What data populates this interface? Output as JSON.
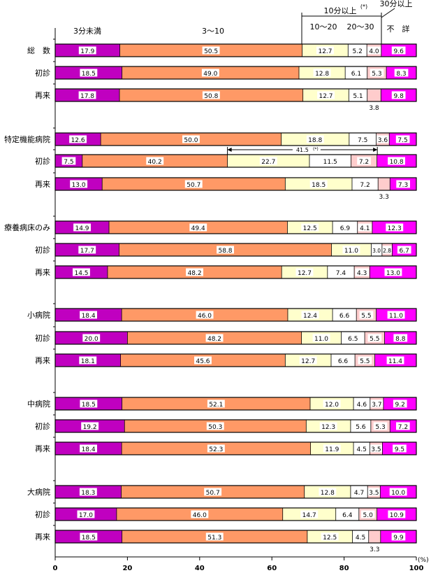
{
  "chart_data": {
    "type": "bar",
    "orientation": "horizontal",
    "stacked": true,
    "x_unit": "(%)",
    "xlim": [
      0,
      100
    ],
    "x_ticks": [
      "0",
      "20",
      "40",
      "60",
      "80",
      "100"
    ],
    "legend_labels": [
      "3分未満",
      "3～10",
      "10～20",
      "20～30",
      "30分以上",
      "不　詳"
    ],
    "group_header": "10分以上",
    "group_header_mark": "(*)",
    "series_colors": [
      "#c000c0",
      "#ff9966",
      "#ffffcc",
      "#ffffff",
      "#ffcccc",
      "#ff00ff"
    ],
    "bar_border_color": "#000000",
    "rows": [
      {
        "category": "総　数",
        "values": [
          17.9,
          50.5,
          12.7,
          5.2,
          4.0,
          9.6
        ],
        "labels": [
          "17.9",
          "50.5",
          "12.7",
          "5.2",
          "4.0",
          "9.6"
        ]
      },
      {
        "category": "初診",
        "values": [
          18.5,
          49.0,
          12.8,
          6.1,
          5.3,
          8.3
        ],
        "labels": [
          "18.5",
          "49.0",
          "12.8",
          "6.1",
          "5.3",
          "8.3"
        ]
      },
      {
        "category": "再来",
        "values": [
          17.8,
          50.8,
          12.7,
          5.1,
          3.8,
          9.8
        ],
        "labels": [
          "17.8",
          "50.8",
          "12.7",
          "5.1",
          "3.8",
          "9.8"
        ]
      },
      {
        "category": "特定機能病院",
        "values": [
          12.6,
          50.0,
          18.8,
          7.5,
          3.6,
          7.5
        ],
        "labels": [
          "12.6",
          "50.0",
          "18.8",
          "7.5",
          "3.6",
          "7.5"
        ]
      },
      {
        "category": "初診",
        "values": [
          7.5,
          40.2,
          22.7,
          11.5,
          7.2,
          10.8
        ],
        "labels": [
          "7.5",
          "40.2",
          "22.7",
          "11.5",
          "7.2",
          "10.8"
        ]
      },
      {
        "category": "再来",
        "values": [
          13.0,
          50.7,
          18.5,
          7.2,
          3.3,
          7.3
        ],
        "labels": [
          "13.0",
          "50.7",
          "18.5",
          "7.2",
          "3.3",
          "7.3"
        ]
      },
      {
        "category": "療養病床のみ",
        "values": [
          14.9,
          49.4,
          12.5,
          6.9,
          4.1,
          12.3
        ],
        "labels": [
          "14.9",
          "49.4",
          "12.5",
          "6.9",
          "4.1",
          "12.3"
        ]
      },
      {
        "category": "初診",
        "values": [
          17.7,
          58.8,
          11.0,
          3.0,
          2.8,
          6.7
        ],
        "labels": [
          "17.7",
          "58.8",
          "11.0",
          "3.0",
          "2.8",
          "6.7"
        ]
      },
      {
        "category": "再来",
        "values": [
          14.5,
          48.2,
          12.7,
          7.4,
          4.3,
          13.0
        ],
        "labels": [
          "14.5",
          "48.2",
          "12.7",
          "7.4",
          "4.3",
          "13.0"
        ]
      },
      {
        "category": "小病院",
        "values": [
          18.4,
          46.0,
          12.4,
          6.6,
          5.5,
          11.0
        ],
        "labels": [
          "18.4",
          "46.0",
          "12.4",
          "6.6",
          "5.5",
          "11.0"
        ]
      },
      {
        "category": "初診",
        "values": [
          20.0,
          48.2,
          11.0,
          6.5,
          5.5,
          8.8
        ],
        "labels": [
          "20.0",
          "48.2",
          "11.0",
          "6.5",
          "5.5",
          "8.8"
        ]
      },
      {
        "category": "再来",
        "values": [
          18.1,
          45.6,
          12.7,
          6.6,
          5.5,
          11.4
        ],
        "labels": [
          "18.1",
          "45.6",
          "12.7",
          "6.6",
          "5.5",
          "11.4"
        ]
      },
      {
        "category": "中病院",
        "values": [
          18.5,
          52.1,
          12.0,
          4.6,
          3.7,
          9.2
        ],
        "labels": [
          "18.5",
          "52.1",
          "12.0",
          "4.6",
          "3.7",
          "9.2"
        ]
      },
      {
        "category": "初診",
        "values": [
          19.2,
          50.3,
          12.3,
          5.6,
          5.3,
          7.2
        ],
        "labels": [
          "19.2",
          "50.3",
          "12.3",
          "5.6",
          "5.3",
          "7.2"
        ]
      },
      {
        "category": "再来",
        "values": [
          18.4,
          52.3,
          11.9,
          4.5,
          3.5,
          9.5
        ],
        "labels": [
          "18.4",
          "52.3",
          "11.9",
          "4.5",
          "3.5",
          "9.5"
        ]
      },
      {
        "category": "大病院",
        "values": [
          18.3,
          50.7,
          12.8,
          4.7,
          3.5,
          10.0
        ],
        "labels": [
          "18.3",
          "50.7",
          "12.8",
          "4.7",
          "3.5",
          "10.0"
        ]
      },
      {
        "category": "初診",
        "values": [
          17.0,
          46.0,
          14.7,
          6.4,
          5.0,
          10.9
        ],
        "labels": [
          "17.0",
          "46.0",
          "14.7",
          "6.4",
          "5.0",
          "10.9"
        ]
      },
      {
        "category": "再来",
        "values": [
          18.5,
          51.3,
          12.5,
          4.5,
          3.3,
          9.9
        ],
        "labels": [
          "18.5",
          "51.3",
          "12.5",
          "4.5",
          "3.3",
          "9.9"
        ]
      }
    ],
    "annotations": [
      {
        "row": 4,
        "text": "41.5",
        "mark": "(*)",
        "from": 47.7,
        "to": 89.2
      }
    ],
    "below_labels": [
      {
        "row": 2,
        "segment": 4,
        "text": "3.8"
      },
      {
        "row": 5,
        "segment": 4,
        "text": "3.3"
      },
      {
        "row": 17,
        "segment": 4,
        "text": "3.3"
      }
    ]
  }
}
